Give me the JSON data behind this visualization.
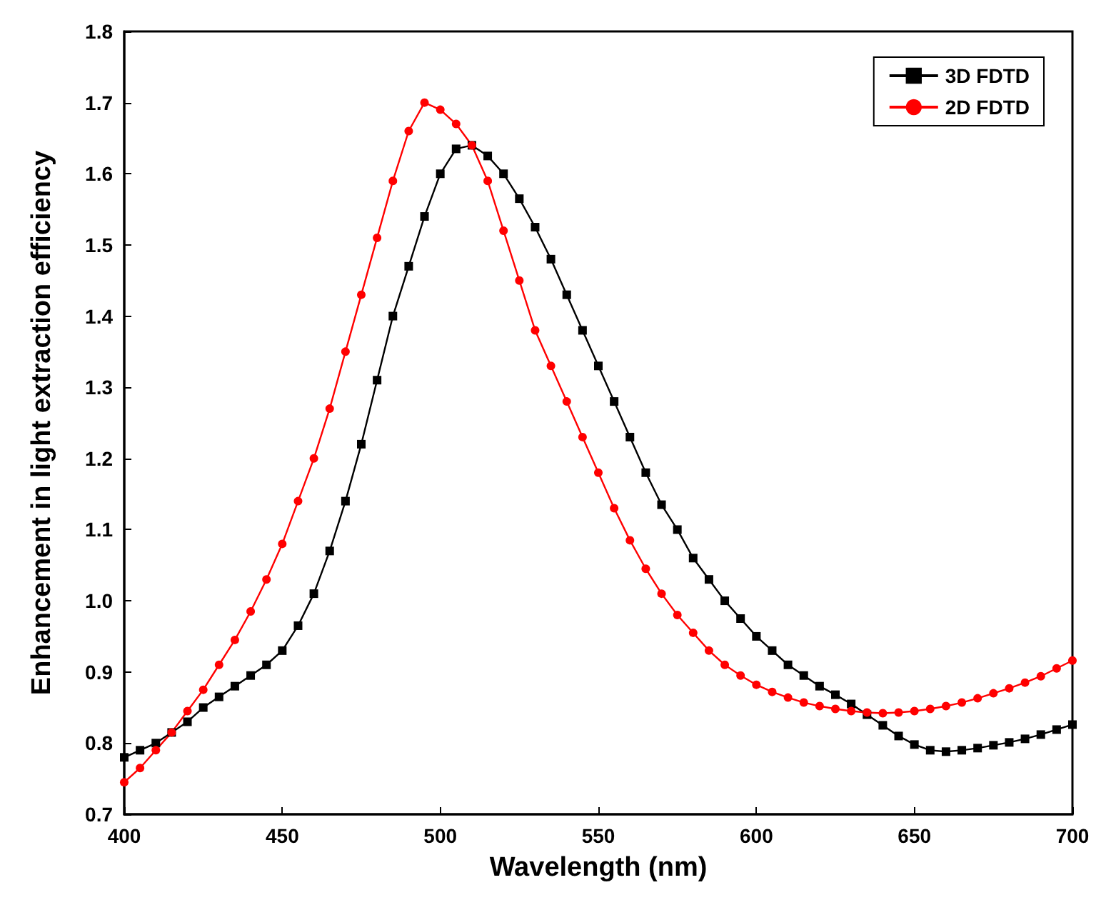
{
  "chart_data": {
    "type": "line",
    "xlabel": "Wavelength (nm)",
    "ylabel": "Enhancement in light extraction efficiency",
    "x": [
      400,
      405,
      410,
      415,
      420,
      425,
      430,
      435,
      440,
      445,
      450,
      455,
      460,
      465,
      470,
      475,
      480,
      485,
      490,
      495,
      500,
      505,
      510,
      515,
      520,
      525,
      530,
      535,
      540,
      545,
      550,
      555,
      560,
      565,
      570,
      575,
      580,
      585,
      590,
      595,
      600,
      605,
      610,
      615,
      620,
      625,
      630,
      635,
      640,
      645,
      650,
      655,
      660,
      665,
      670,
      675,
      680,
      685,
      690,
      695,
      700
    ],
    "series": [
      {
        "name": "3D FDTD",
        "color": "#000000",
        "marker": "square",
        "values": [
          0.78,
          0.79,
          0.8,
          0.815,
          0.83,
          0.85,
          0.865,
          0.88,
          0.895,
          0.91,
          0.93,
          0.965,
          1.01,
          1.07,
          1.14,
          1.22,
          1.31,
          1.4,
          1.47,
          1.54,
          1.6,
          1.635,
          1.64,
          1.625,
          1.6,
          1.565,
          1.525,
          1.48,
          1.43,
          1.38,
          1.33,
          1.28,
          1.23,
          1.18,
          1.135,
          1.1,
          1.06,
          1.03,
          1.0,
          0.975,
          0.95,
          0.93,
          0.91,
          0.895,
          0.88,
          0.868,
          0.855,
          0.84,
          0.825,
          0.81,
          0.798,
          0.79,
          0.788,
          0.79,
          0.793,
          0.797,
          0.801,
          0.806,
          0.812,
          0.819,
          0.826
        ]
      },
      {
        "name": "2D FDTD",
        "color": "#ff0000",
        "marker": "circle",
        "values": [
          0.745,
          0.765,
          0.79,
          0.815,
          0.845,
          0.875,
          0.91,
          0.945,
          0.985,
          1.03,
          1.08,
          1.14,
          1.2,
          1.27,
          1.35,
          1.43,
          1.51,
          1.59,
          1.66,
          1.7,
          1.69,
          1.67,
          1.64,
          1.59,
          1.52,
          1.45,
          1.38,
          1.33,
          1.28,
          1.23,
          1.18,
          1.13,
          1.085,
          1.045,
          1.01,
          0.98,
          0.955,
          0.93,
          0.91,
          0.895,
          0.882,
          0.872,
          0.864,
          0.857,
          0.852,
          0.848,
          0.845,
          0.843,
          0.842,
          0.843,
          0.845,
          0.848,
          0.852,
          0.857,
          0.863,
          0.87,
          0.877,
          0.885,
          0.894,
          0.905,
          0.916
        ]
      }
    ],
    "xlim": [
      400,
      700
    ],
    "xticks": [
      400,
      450,
      500,
      550,
      600,
      650,
      700
    ],
    "ylim": [
      0.7,
      1.8
    ],
    "yticks": [
      0.7,
      0.8,
      0.9,
      {
        "value": 1,
        "label": "1.0"
      },
      1.1,
      1.2,
      1.3,
      1.4,
      1.5,
      1.6,
      1.7,
      1.8
    ],
    "grid": false,
    "legend": "top right",
    "line_style": "solid"
  }
}
